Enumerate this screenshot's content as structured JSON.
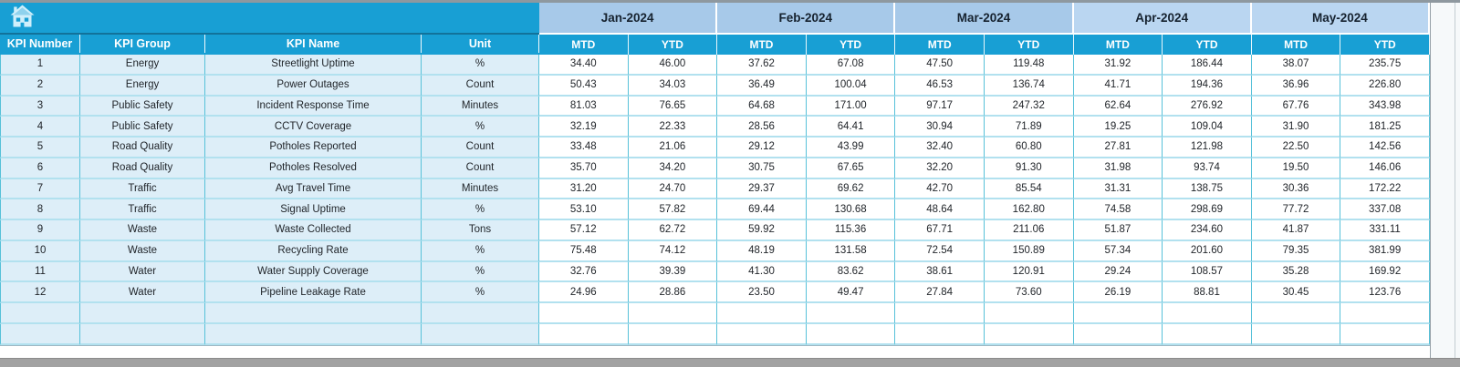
{
  "toolbar": {
    "home_icon": "home-icon"
  },
  "table": {
    "left_headers": [
      "KPI Number",
      "KPI Group",
      "KPI Name",
      "Unit"
    ],
    "month_groups": [
      {
        "label": "Jan-2024",
        "shade": "dark"
      },
      {
        "label": "Feb-2024",
        "shade": "dark"
      },
      {
        "label": "Mar-2024",
        "shade": "dark"
      },
      {
        "label": "Apr-2024",
        "shade": "light"
      },
      {
        "label": "May-2024",
        "shade": "light"
      }
    ],
    "sub_headers": [
      "MTD",
      "YTD"
    ],
    "rows": [
      {
        "number": "1",
        "group": "Energy",
        "name": "Streetlight Uptime",
        "unit": "%",
        "values": [
          "34.40",
          "46.00",
          "37.62",
          "67.08",
          "47.50",
          "119.48",
          "31.92",
          "186.44",
          "38.07",
          "235.75"
        ]
      },
      {
        "number": "2",
        "group": "Energy",
        "name": "Power Outages",
        "unit": "Count",
        "values": [
          "50.43",
          "34.03",
          "36.49",
          "100.04",
          "46.53",
          "136.74",
          "41.71",
          "194.36",
          "36.96",
          "226.80"
        ]
      },
      {
        "number": "3",
        "group": "Public Safety",
        "name": "Incident Response Time",
        "unit": "Minutes",
        "values": [
          "81.03",
          "76.65",
          "64.68",
          "171.00",
          "97.17",
          "247.32",
          "62.64",
          "276.92",
          "67.76",
          "343.98"
        ]
      },
      {
        "number": "4",
        "group": "Public Safety",
        "name": "CCTV Coverage",
        "unit": "%",
        "values": [
          "32.19",
          "22.33",
          "28.56",
          "64.41",
          "30.94",
          "71.89",
          "19.25",
          "109.04",
          "31.90",
          "181.25"
        ]
      },
      {
        "number": "5",
        "group": "Road Quality",
        "name": "Potholes Reported",
        "unit": "Count",
        "values": [
          "33.48",
          "21.06",
          "29.12",
          "43.99",
          "32.40",
          "60.80",
          "27.81",
          "121.98",
          "22.50",
          "142.56"
        ]
      },
      {
        "number": "6",
        "group": "Road Quality",
        "name": "Potholes Resolved",
        "unit": "Count",
        "values": [
          "35.70",
          "34.20",
          "30.75",
          "67.65",
          "32.20",
          "91.30",
          "31.98",
          "93.74",
          "19.50",
          "146.06"
        ]
      },
      {
        "number": "7",
        "group": "Traffic",
        "name": "Avg Travel Time",
        "unit": "Minutes",
        "values": [
          "31.20",
          "24.70",
          "29.37",
          "69.62",
          "42.70",
          "85.54",
          "31.31",
          "138.75",
          "30.36",
          "172.22"
        ]
      },
      {
        "number": "8",
        "group": "Traffic",
        "name": "Signal Uptime",
        "unit": "%",
        "values": [
          "53.10",
          "57.82",
          "69.44",
          "130.68",
          "48.64",
          "162.80",
          "74.58",
          "298.69",
          "77.72",
          "337.08"
        ]
      },
      {
        "number": "9",
        "group": "Waste",
        "name": "Waste Collected",
        "unit": "Tons",
        "values": [
          "57.12",
          "62.72",
          "59.92",
          "115.36",
          "67.71",
          "211.06",
          "51.87",
          "234.60",
          "41.87",
          "331.11"
        ]
      },
      {
        "number": "10",
        "group": "Waste",
        "name": "Recycling Rate",
        "unit": "%",
        "values": [
          "75.48",
          "74.12",
          "48.19",
          "131.58",
          "72.54",
          "150.89",
          "57.34",
          "201.60",
          "79.35",
          "381.99"
        ]
      },
      {
        "number": "11",
        "group": "Water",
        "name": "Water Supply Coverage",
        "unit": "%",
        "values": [
          "32.76",
          "39.39",
          "41.30",
          "83.62",
          "38.61",
          "120.91",
          "29.24",
          "108.57",
          "35.28",
          "169.92"
        ]
      },
      {
        "number": "12",
        "group": "Water",
        "name": "Pipeline Leakage Rate",
        "unit": "%",
        "values": [
          "24.96",
          "28.86",
          "23.50",
          "49.47",
          "27.84",
          "73.60",
          "26.19",
          "88.81",
          "30.45",
          "123.76"
        ]
      }
    ],
    "empty_rows": 2
  },
  "colors": {
    "accent_cyan": "#189fd4",
    "month_band_dark": "#a7c9e9",
    "month_band_light": "#bad6f1",
    "row_tint": "#ddeef8",
    "grid_vertical": "#57c1d9",
    "grid_horizontal": "#b2e1ef",
    "bottom_bar": "#a2a2a2"
  }
}
